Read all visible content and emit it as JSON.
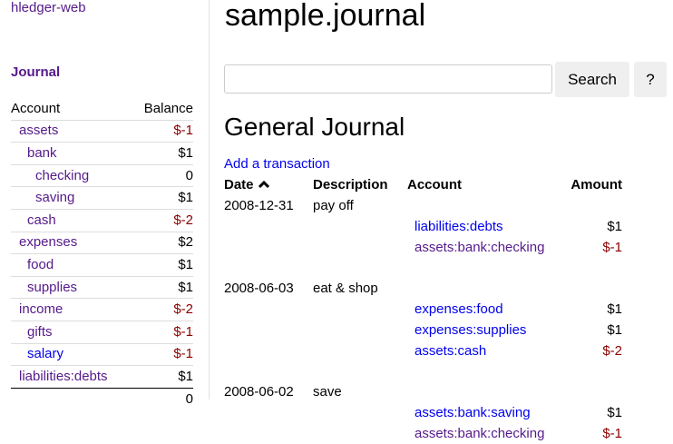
{
  "brand": "hledger-web",
  "sidebar": {
    "journal_link": "Journal",
    "headers": {
      "account": "Account",
      "balance": "Balance"
    },
    "accounts": [
      {
        "name": "assets",
        "balance": "$-1",
        "depth": 0,
        "visited": true,
        "negative": true
      },
      {
        "name": "bank",
        "balance": "$1",
        "depth": 1,
        "visited": true,
        "negative": false
      },
      {
        "name": "checking",
        "balance": "0",
        "depth": 2,
        "visited": true,
        "negative": false
      },
      {
        "name": "saving",
        "balance": "$1",
        "depth": 2,
        "visited": true,
        "negative": false
      },
      {
        "name": "cash",
        "balance": "$-2",
        "depth": 1,
        "visited": true,
        "negative": true
      },
      {
        "name": "expenses",
        "balance": "$2",
        "depth": 0,
        "visited": true,
        "negative": false
      },
      {
        "name": "food",
        "balance": "$1",
        "depth": 1,
        "visited": true,
        "negative": false
      },
      {
        "name": "supplies",
        "balance": "$1",
        "depth": 1,
        "visited": true,
        "negative": false
      },
      {
        "name": "income",
        "balance": "$-2",
        "depth": 0,
        "visited": true,
        "negative": true
      },
      {
        "name": "gifts",
        "balance": "$-1",
        "depth": 1,
        "visited": true,
        "negative": true
      },
      {
        "name": "salary",
        "balance": "$-1",
        "depth": 1,
        "visited": false,
        "negative": true
      },
      {
        "name": "liabilities:debts",
        "balance": "$1",
        "depth": 0,
        "visited": true,
        "negative": false
      }
    ],
    "total": "0"
  },
  "main": {
    "title": "sample.journal",
    "search": {
      "value": "",
      "button": "Search",
      "help": "?"
    },
    "heading": "General Journal",
    "add_link": "Add a transaction",
    "columns": {
      "date": "Date",
      "description": "Description",
      "account": "Account",
      "amount": "Amount"
    },
    "sort_icon": "chevron-up-icon",
    "transactions": [
      {
        "date": "2008-12-31",
        "description": "pay off",
        "postings": [
          {
            "account": "liabilities:debts",
            "amount": "$1",
            "visited": false,
            "negative": false
          },
          {
            "account": "assets:bank:checking",
            "amount": "$-1",
            "visited": true,
            "negative": true
          }
        ]
      },
      {
        "date": "2008-06-03",
        "description": "eat & shop",
        "postings": [
          {
            "account": "expenses:food",
            "amount": "$1",
            "visited": false,
            "negative": false
          },
          {
            "account": "expenses:supplies",
            "amount": "$1",
            "visited": false,
            "negative": false
          },
          {
            "account": "assets:cash",
            "amount": "$-2",
            "visited": false,
            "negative": true
          }
        ]
      },
      {
        "date": "2008-06-02",
        "description": "save",
        "postings": [
          {
            "account": "assets:bank:saving",
            "amount": "$1",
            "visited": false,
            "negative": false
          },
          {
            "account": "assets:bank:checking",
            "amount": "$-1",
            "visited": true,
            "negative": true
          }
        ]
      }
    ]
  },
  "colors": {
    "visited_link": "#551a8b",
    "link": "#0000ee",
    "negative": "#8b0000"
  }
}
